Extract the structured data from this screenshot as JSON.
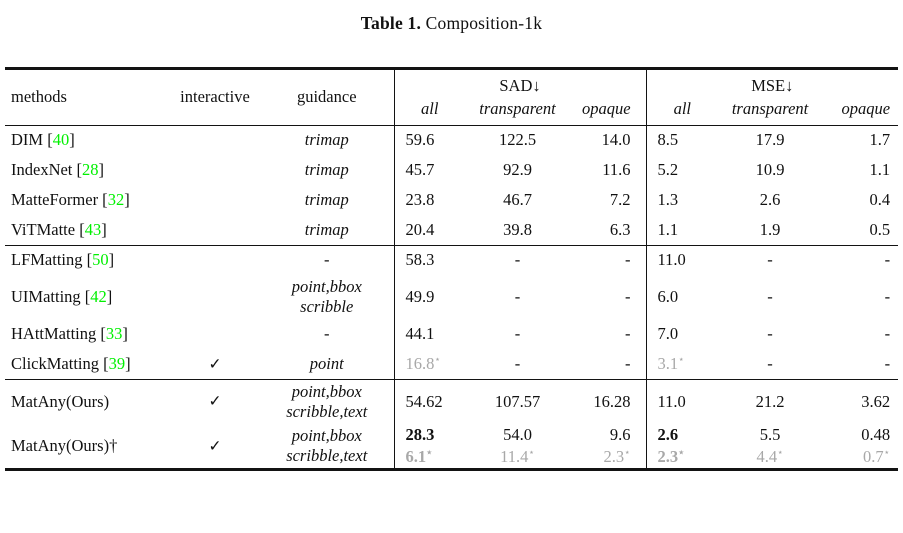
{
  "caption": {
    "label": "Table 1.",
    "text": "Composition-1k"
  },
  "colors": {
    "citation_green": "#00f000",
    "muted_gray": "#a8a8a8",
    "rule": "#131313"
  },
  "table": {
    "checkmark": "✓",
    "star": "⋆",
    "col_headers": {
      "methods": "methods",
      "interactive": "interactive",
      "guidance": "guidance"
    },
    "groups": [
      {
        "label": "SAD↓",
        "subcols": [
          "all",
          "transparent",
          "opaque"
        ]
      },
      {
        "label": "MSE↓",
        "subcols": [
          "all",
          "transparent",
          "opaque"
        ]
      }
    ],
    "blocks": [
      {
        "rows": [
          {
            "method": "DIM",
            "cite": "40",
            "interactive": false,
            "guidance": [
              "trimap"
            ],
            "cells": [
              [
                {
                  "t": "59.6"
                }
              ],
              [
                {
                  "t": "122.5"
                }
              ],
              [
                {
                  "t": "14.0"
                }
              ],
              [
                {
                  "t": "8.5"
                }
              ],
              [
                {
                  "t": "17.9"
                }
              ],
              [
                {
                  "t": "1.7"
                }
              ]
            ]
          },
          {
            "method": "IndexNet",
            "cite": "28",
            "interactive": false,
            "guidance": [
              "trimap"
            ],
            "cells": [
              [
                {
                  "t": "45.7"
                }
              ],
              [
                {
                  "t": "92.9"
                }
              ],
              [
                {
                  "t": "11.6"
                }
              ],
              [
                {
                  "t": "5.2"
                }
              ],
              [
                {
                  "t": "10.9"
                }
              ],
              [
                {
                  "t": "1.1"
                }
              ]
            ]
          },
          {
            "method": "MatteFormer",
            "cite": "32",
            "interactive": false,
            "guidance": [
              "trimap"
            ],
            "cells": [
              [
                {
                  "t": "23.8"
                }
              ],
              [
                {
                  "t": "46.7"
                }
              ],
              [
                {
                  "t": "7.2"
                }
              ],
              [
                {
                  "t": "1.3"
                }
              ],
              [
                {
                  "t": "2.6"
                }
              ],
              [
                {
                  "t": "0.4"
                }
              ]
            ]
          },
          {
            "method": "ViTMatte",
            "cite": "43",
            "interactive": false,
            "guidance": [
              "trimap"
            ],
            "cells": [
              [
                {
                  "t": "20.4"
                }
              ],
              [
                {
                  "t": "39.8"
                }
              ],
              [
                {
                  "t": "6.3"
                }
              ],
              [
                {
                  "t": "1.1"
                }
              ],
              [
                {
                  "t": "1.9"
                }
              ],
              [
                {
                  "t": "0.5"
                }
              ]
            ]
          }
        ]
      },
      {
        "rows": [
          {
            "method": "LFMatting",
            "cite": "50",
            "interactive": false,
            "guidance": [
              "-"
            ],
            "cells": [
              [
                {
                  "t": "58.3"
                }
              ],
              [
                {
                  "t": "-"
                }
              ],
              [
                {
                  "t": "-"
                }
              ],
              [
                {
                  "t": "11.0"
                }
              ],
              [
                {
                  "t": "-"
                }
              ],
              [
                {
                  "t": "-"
                }
              ]
            ]
          },
          {
            "method": "UIMatting",
            "cite": "42",
            "interactive": false,
            "guidance": [
              "point,bbox",
              "scribble"
            ],
            "cells": [
              [
                {
                  "t": "49.9"
                }
              ],
              [
                {
                  "t": "-"
                }
              ],
              [
                {
                  "t": "-"
                }
              ],
              [
                {
                  "t": "6.0"
                }
              ],
              [
                {
                  "t": "-"
                }
              ],
              [
                {
                  "t": "-"
                }
              ]
            ]
          },
          {
            "method": "HAttMatting",
            "cite": "33",
            "interactive": false,
            "guidance": [
              "-"
            ],
            "cells": [
              [
                {
                  "t": "44.1"
                }
              ],
              [
                {
                  "t": "-"
                }
              ],
              [
                {
                  "t": "-"
                }
              ],
              [
                {
                  "t": "7.0"
                }
              ],
              [
                {
                  "t": "-"
                }
              ],
              [
                {
                  "t": "-"
                }
              ]
            ]
          },
          {
            "method": "ClickMatting",
            "cite": "39",
            "interactive": true,
            "guidance": [
              "point"
            ],
            "cells": [
              [
                {
                  "t": "16.8",
                  "g": true,
                  "s": true
                }
              ],
              [
                {
                  "t": "-"
                }
              ],
              [
                {
                  "t": "-"
                }
              ],
              [
                {
                  "t": "3.1",
                  "g": true,
                  "s": true
                }
              ],
              [
                {
                  "t": "-"
                }
              ],
              [
                {
                  "t": "-"
                }
              ]
            ]
          }
        ]
      },
      {
        "rows": [
          {
            "method": "MatAny(Ours)",
            "cite": "",
            "interactive": true,
            "guidance": [
              "point,bbox",
              "scribble,text"
            ],
            "cells": [
              [
                {
                  "t": "54.62"
                }
              ],
              [
                {
                  "t": "107.57"
                }
              ],
              [
                {
                  "t": "16.28"
                }
              ],
              [
                {
                  "t": "11.0"
                }
              ],
              [
                {
                  "t": "21.2"
                }
              ],
              [
                {
                  "t": "3.62"
                }
              ]
            ]
          },
          {
            "method": "MatAny(Ours)†",
            "cite": "",
            "interactive": true,
            "guidance": [
              "point,bbox",
              "scribble,text"
            ],
            "cells": [
              [
                {
                  "t": "28.3",
                  "b": true
                },
                {
                  "t": "6.1",
                  "b": true,
                  "g": true,
                  "s": true
                }
              ],
              [
                {
                  "t": "54.0"
                },
                {
                  "t": "11.4",
                  "g": true,
                  "s": true
                }
              ],
              [
                {
                  "t": "9.6"
                },
                {
                  "t": "2.3",
                  "g": true,
                  "s": true
                }
              ],
              [
                {
                  "t": "2.6",
                  "b": true
                },
                {
                  "t": "2.3",
                  "b": true,
                  "g": true,
                  "s": true
                }
              ],
              [
                {
                  "t": "5.5"
                },
                {
                  "t": "4.4",
                  "g": true,
                  "s": true
                }
              ],
              [
                {
                  "t": "0.48"
                },
                {
                  "t": "0.7",
                  "g": true,
                  "s": true
                }
              ]
            ]
          }
        ]
      }
    ]
  }
}
